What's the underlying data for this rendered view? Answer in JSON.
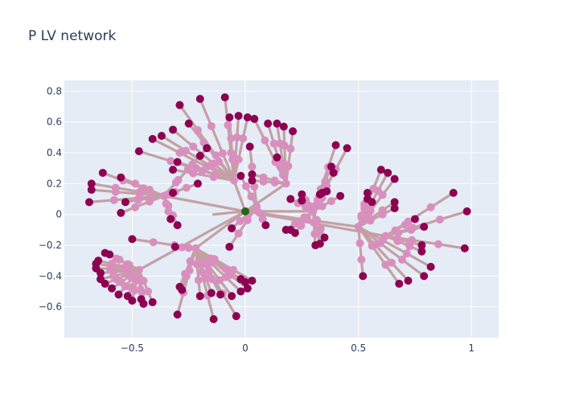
{
  "chart_data": {
    "type": "scatter",
    "title": "P LV network",
    "xlabel": "",
    "ylabel": "",
    "xlim": [
      -0.8,
      1.12
    ],
    "ylim": [
      -0.8,
      0.87
    ],
    "grid": true,
    "legend": "none",
    "x_ticks": [
      -0.5,
      0,
      0.5,
      1
    ],
    "x_tick_labels": [
      "−0.5",
      "0",
      "0.5",
      "1"
    ],
    "y_ticks": [
      -0.6,
      -0.4,
      -0.2,
      0,
      0.2,
      0.4,
      0.6,
      0.8
    ],
    "y_tick_labels": [
      "−0.6",
      "−0.4",
      "−0.2",
      "0",
      "0.2",
      "0.4",
      "0.6",
      "0.8"
    ],
    "colors": {
      "plot_background": "#e5ecf6",
      "grid": "#ffffff",
      "edge": "#c4a0a4",
      "inner_node": "#d98fbd",
      "leaf_node": "#8e0152",
      "source_node": "#276419"
    },
    "source": {
      "x": 0.0,
      "y": 0.02
    },
    "hubs": [
      {
        "x": 0.05,
        "y": 0.05
      },
      {
        "x": -0.14,
        "y": 0.0
      },
      {
        "x": 0.3,
        "y": 0.02
      },
      {
        "x": 0.5,
        "y": -0.08
      },
      {
        "x": -0.22,
        "y": -0.22
      },
      {
        "x": -0.47,
        "y": -0.36
      },
      {
        "x": -0.05,
        "y": 0.22
      },
      {
        "x": 0.18,
        "y": 0.2
      },
      {
        "x": -0.36,
        "y": 0.12
      },
      {
        "x": 0.62,
        "y": -0.14
      }
    ],
    "branches": [
      {
        "hub": 6,
        "ends": [
          [
            -0.29,
            0.71
          ],
          [
            -0.2,
            0.75
          ],
          [
            -0.09,
            0.76
          ],
          [
            -0.07,
            0.63
          ],
          [
            -0.03,
            0.64
          ],
          [
            0.01,
            0.63
          ],
          [
            -0.25,
            0.59
          ],
          [
            -0.32,
            0.55
          ],
          [
            -0.37,
            0.51
          ],
          [
            -0.41,
            0.49
          ],
          [
            -0.47,
            0.41
          ],
          [
            -0.3,
            0.34
          ],
          [
            -0.32,
            0.29
          ]
        ]
      },
      {
        "hub": 7,
        "ends": [
          [
            0.04,
            0.62
          ],
          [
            0.1,
            0.59
          ],
          [
            0.14,
            0.59
          ],
          [
            0.17,
            0.57
          ],
          [
            0.21,
            0.54
          ],
          [
            0.14,
            0.37
          ],
          [
            0.03,
            0.26
          ],
          [
            0.03,
            0.22
          ]
        ]
      },
      {
        "hub": 0,
        "ends": [
          [
            0.02,
            0.44
          ],
          [
            -0.02,
            0.25
          ],
          [
            0.09,
            -0.07
          ],
          [
            -0.06,
            -0.09
          ],
          [
            -0.07,
            -0.21
          ]
        ]
      },
      {
        "hub": 8,
        "ends": [
          [
            -0.63,
            0.27
          ],
          [
            -0.55,
            0.24
          ],
          [
            -0.68,
            0.2
          ],
          [
            -0.68,
            0.16
          ],
          [
            -0.69,
            0.08
          ],
          [
            -0.53,
            0.08
          ],
          [
            -0.55,
            0.01
          ],
          [
            -0.33,
            -0.03
          ],
          [
            -0.3,
            -0.07
          ],
          [
            -0.17,
            0.43
          ],
          [
            -0.2,
            0.38
          ],
          [
            -0.21,
            0.2
          ],
          [
            -0.32,
            0.14
          ]
        ]
      },
      {
        "hub": 2,
        "ends": [
          [
            0.4,
            0.45
          ],
          [
            0.45,
            0.43
          ],
          [
            0.38,
            0.31
          ],
          [
            0.39,
            0.27
          ],
          [
            0.36,
            0.15
          ],
          [
            0.34,
            0.14
          ],
          [
            0.33,
            0.13
          ],
          [
            0.25,
            0.13
          ],
          [
            0.25,
            0.09
          ],
          [
            0.2,
            0.1
          ],
          [
            0.42,
            0.12
          ],
          [
            0.2,
            -0.1
          ],
          [
            0.22,
            -0.12
          ],
          [
            0.18,
            -0.1
          ],
          [
            0.31,
            -0.2
          ],
          [
            0.33,
            -0.19
          ],
          [
            0.35,
            -0.15
          ]
        ]
      },
      {
        "hub": 3,
        "ends": [
          [
            0.54,
            0.14
          ],
          [
            0.56,
            0.08
          ],
          [
            0.52,
            -0.4
          ],
          [
            0.68,
            -0.45
          ],
          [
            0.72,
            -0.43
          ],
          [
            0.79,
            -0.4
          ],
          [
            0.82,
            -0.34
          ],
          [
            0.6,
            0.29
          ],
          [
            0.63,
            0.27
          ],
          [
            0.66,
            0.23
          ],
          [
            0.66,
            0.08
          ],
          [
            0.66,
            0.04
          ],
          [
            0.54,
            0.1
          ]
        ]
      },
      {
        "hub": 9,
        "ends": [
          [
            0.75,
            -0.03
          ],
          [
            0.92,
            0.14
          ],
          [
            0.98,
            0.02
          ],
          [
            0.97,
            -0.22
          ],
          [
            0.79,
            -0.08
          ],
          [
            0.78,
            -0.2
          ],
          [
            0.78,
            -0.24
          ]
        ]
      },
      {
        "hub": 4,
        "ends": [
          [
            -0.29,
            -0.47
          ],
          [
            -0.28,
            -0.49
          ],
          [
            -0.3,
            -0.65
          ],
          [
            -0.2,
            -0.53
          ],
          [
            -0.15,
            -0.51
          ],
          [
            -0.11,
            -0.52
          ],
          [
            -0.06,
            -0.53
          ],
          [
            -0.14,
            -0.68
          ],
          [
            -0.04,
            -0.66
          ],
          [
            -0.02,
            -0.5
          ],
          [
            0.0,
            -0.44
          ],
          [
            0.03,
            -0.43
          ],
          [
            0.01,
            -0.48
          ],
          [
            -0.02,
            -0.42
          ],
          [
            -0.31,
            -0.21
          ],
          [
            -0.5,
            -0.16
          ]
        ]
      },
      {
        "hub": 5,
        "ends": [
          [
            -0.62,
            -0.25
          ],
          [
            -0.6,
            -0.26
          ],
          [
            -0.65,
            -0.3
          ],
          [
            -0.66,
            -0.32
          ],
          [
            -0.66,
            -0.35
          ],
          [
            -0.64,
            -0.38
          ],
          [
            -0.64,
            -0.42
          ],
          [
            -0.62,
            -0.45
          ],
          [
            -0.59,
            -0.48
          ],
          [
            -0.56,
            -0.52
          ],
          [
            -0.52,
            -0.53
          ],
          [
            -0.5,
            -0.56
          ],
          [
            -0.46,
            -0.55
          ],
          [
            -0.45,
            -0.58
          ],
          [
            -0.41,
            -0.57
          ]
        ]
      }
    ]
  }
}
